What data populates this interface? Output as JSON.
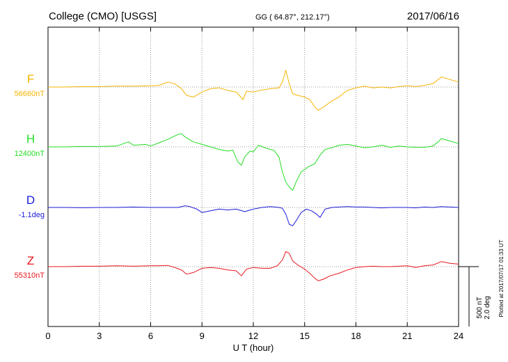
{
  "header": {
    "station": "College (CMO)  [USGS]",
    "coords": "GG ( 64.87°, 212.17°)",
    "date": "2017/06/16"
  },
  "footer_note": "Plotted at 2017/07/17 01:33 UT",
  "scale_bar": {
    "line1": "500 nT",
    "line2": "2.0 deg"
  },
  "chart_data": {
    "type": "line",
    "title": "College (CMO)  [USGS]",
    "xlabel": "U T (hour)",
    "ylabel": "",
    "xlim": [
      0,
      24
    ],
    "xticks": [
      0,
      3,
      6,
      9,
      12,
      15,
      18,
      21,
      24
    ],
    "grid": true,
    "series": [
      {
        "name": "F",
        "baseline_label": "56660nT",
        "color": "#f4b400",
        "baseline_value": 56660,
        "units": "nT",
        "points": [
          [
            0,
            0
          ],
          [
            1,
            0
          ],
          [
            2,
            5
          ],
          [
            3,
            5
          ],
          [
            4,
            10
          ],
          [
            5,
            10
          ],
          [
            6,
            15
          ],
          [
            6.5,
            20
          ],
          [
            7,
            60
          ],
          [
            7.4,
            40
          ],
          [
            7.8,
            -20
          ],
          [
            8.1,
            -100
          ],
          [
            8.5,
            -120
          ],
          [
            9,
            -60
          ],
          [
            9.5,
            -20
          ],
          [
            10,
            -10
          ],
          [
            10.5,
            -40
          ],
          [
            11,
            -60
          ],
          [
            11.4,
            -150
          ],
          [
            11.6,
            -50
          ],
          [
            12,
            -60
          ],
          [
            12.4,
            -40
          ],
          [
            13,
            -20
          ],
          [
            13.5,
            -10
          ],
          [
            13.7,
            60
          ],
          [
            13.9,
            200
          ],
          [
            14.1,
            40
          ],
          [
            14.3,
            -80
          ],
          [
            14.6,
            -100
          ],
          [
            15,
            -120
          ],
          [
            15.3,
            -150
          ],
          [
            15.6,
            -240
          ],
          [
            15.8,
            -280
          ],
          [
            16.1,
            -240
          ],
          [
            16.5,
            -180
          ],
          [
            17,
            -120
          ],
          [
            17.5,
            -40
          ],
          [
            18,
            -10
          ],
          [
            18.5,
            10
          ],
          [
            19,
            -10
          ],
          [
            19.5,
            0
          ],
          [
            20,
            -10
          ],
          [
            20.5,
            5
          ],
          [
            21,
            15
          ],
          [
            21.5,
            5
          ],
          [
            22,
            20
          ],
          [
            22.5,
            40
          ],
          [
            23,
            120
          ],
          [
            23.5,
            90
          ],
          [
            24,
            60
          ]
        ]
      },
      {
        "name": "H",
        "baseline_label": "12400nT",
        "color": "#22dd22",
        "baseline_value": 12400,
        "units": "nT",
        "points": [
          [
            0,
            0
          ],
          [
            1,
            0
          ],
          [
            2,
            5
          ],
          [
            3,
            5
          ],
          [
            4,
            10
          ],
          [
            4.7,
            60
          ],
          [
            5,
            20
          ],
          [
            5.7,
            30
          ],
          [
            6,
            10
          ],
          [
            6.5,
            50
          ],
          [
            7,
            90
          ],
          [
            7.5,
            140
          ],
          [
            7.8,
            160
          ],
          [
            8,
            120
          ],
          [
            8.5,
            60
          ],
          [
            9,
            30
          ],
          [
            9.5,
            0
          ],
          [
            10,
            -30
          ],
          [
            10.5,
            -50
          ],
          [
            10.8,
            -40
          ],
          [
            11.1,
            -180
          ],
          [
            11.3,
            -220
          ],
          [
            11.5,
            -120
          ],
          [
            11.8,
            -50
          ],
          [
            12,
            -60
          ],
          [
            12.3,
            20
          ],
          [
            12.8,
            -20
          ],
          [
            13.2,
            -40
          ],
          [
            13.5,
            -120
          ],
          [
            13.7,
            -300
          ],
          [
            13.9,
            -420
          ],
          [
            14.1,
            -480
          ],
          [
            14.3,
            -520
          ],
          [
            14.5,
            -420
          ],
          [
            14.8,
            -300
          ],
          [
            15.2,
            -240
          ],
          [
            15.6,
            -200
          ],
          [
            15.9,
            -100
          ],
          [
            16.2,
            -30
          ],
          [
            16.6,
            -10
          ],
          [
            17,
            20
          ],
          [
            17.5,
            30
          ],
          [
            18,
            10
          ],
          [
            18.5,
            -10
          ],
          [
            19,
            0
          ],
          [
            19.5,
            20
          ],
          [
            20,
            -5
          ],
          [
            20.5,
            10
          ],
          [
            21,
            0
          ],
          [
            21.5,
            -5
          ],
          [
            22,
            -5
          ],
          [
            22.5,
            10
          ],
          [
            22.8,
            60
          ],
          [
            23,
            100
          ],
          [
            23.5,
            70
          ],
          [
            24,
            40
          ]
        ]
      },
      {
        "name": "D",
        "baseline_label": "-1.1deg",
        "color": "#1a1ad6",
        "baseline_value": -1.1,
        "units": "deg",
        "points": [
          [
            0,
            0
          ],
          [
            1,
            0
          ],
          [
            2,
            -3
          ],
          [
            3,
            0
          ],
          [
            4,
            0
          ],
          [
            5,
            5
          ],
          [
            6,
            0
          ],
          [
            7,
            0
          ],
          [
            7.6,
            0
          ],
          [
            8,
            20
          ],
          [
            8.3,
            10
          ],
          [
            8.7,
            -20
          ],
          [
            9,
            -60
          ],
          [
            9.5,
            -40
          ],
          [
            10,
            -20
          ],
          [
            10.5,
            -30
          ],
          [
            11,
            -20
          ],
          [
            11.5,
            -50
          ],
          [
            12,
            -20
          ],
          [
            12.5,
            0
          ],
          [
            13,
            10
          ],
          [
            13.5,
            0
          ],
          [
            13.7,
            -10
          ],
          [
            13.9,
            -80
          ],
          [
            14.1,
            -200
          ],
          [
            14.3,
            -220
          ],
          [
            14.5,
            -160
          ],
          [
            14.8,
            -60
          ],
          [
            15.1,
            -20
          ],
          [
            15.4,
            -40
          ],
          [
            15.7,
            -80
          ],
          [
            15.9,
            -120
          ],
          [
            16.2,
            -20
          ],
          [
            16.6,
            0
          ],
          [
            17,
            5
          ],
          [
            17.5,
            10
          ],
          [
            18,
            5
          ],
          [
            18.5,
            5
          ],
          [
            19,
            0
          ],
          [
            19.5,
            -5
          ],
          [
            20,
            0
          ],
          [
            20.5,
            0
          ],
          [
            21,
            0
          ],
          [
            21.5,
            -5
          ],
          [
            22,
            5
          ],
          [
            22.5,
            0
          ],
          [
            23,
            10
          ],
          [
            23.5,
            5
          ],
          [
            24,
            0
          ]
        ]
      },
      {
        "name": "Z",
        "baseline_label": "55310nT",
        "color": "#e8171d",
        "baseline_value": 55310,
        "units": "nT",
        "points": [
          [
            0,
            0
          ],
          [
            1,
            0
          ],
          [
            2,
            5
          ],
          [
            3,
            5
          ],
          [
            4,
            10
          ],
          [
            5,
            5
          ],
          [
            6,
            10
          ],
          [
            6.5,
            10
          ],
          [
            7,
            15
          ],
          [
            7.4,
            -10
          ],
          [
            7.8,
            -40
          ],
          [
            8.1,
            -90
          ],
          [
            8.5,
            -70
          ],
          [
            9,
            -20
          ],
          [
            9.5,
            -10
          ],
          [
            10,
            -20
          ],
          [
            10.5,
            -40
          ],
          [
            11,
            -50
          ],
          [
            11.3,
            -110
          ],
          [
            11.6,
            -30
          ],
          [
            12,
            -10
          ],
          [
            12.5,
            -20
          ],
          [
            13,
            -20
          ],
          [
            13.4,
            10
          ],
          [
            13.7,
            80
          ],
          [
            13.9,
            180
          ],
          [
            14.1,
            160
          ],
          [
            14.3,
            70
          ],
          [
            14.6,
            20
          ],
          [
            15,
            -30
          ],
          [
            15.3,
            -80
          ],
          [
            15.6,
            -140
          ],
          [
            15.8,
            -170
          ],
          [
            16.1,
            -150
          ],
          [
            16.5,
            -110
          ],
          [
            17,
            -80
          ],
          [
            17.5,
            -40
          ],
          [
            18,
            -10
          ],
          [
            18.5,
            0
          ],
          [
            19,
            5
          ],
          [
            19.5,
            0
          ],
          [
            20,
            0
          ],
          [
            20.5,
            5
          ],
          [
            21,
            10
          ],
          [
            21.5,
            -10
          ],
          [
            22,
            10
          ],
          [
            22.5,
            20
          ],
          [
            23,
            60
          ],
          [
            23.5,
            40
          ],
          [
            24,
            30
          ]
        ]
      }
    ]
  }
}
